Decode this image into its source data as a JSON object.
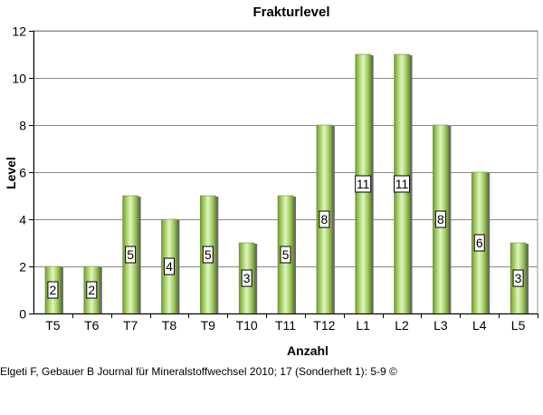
{
  "chart_data": {
    "type": "bar",
    "title": "Frakturlevel",
    "xlabel": "Anzahl",
    "ylabel": "Level",
    "categories": [
      "T5",
      "T6",
      "T7",
      "T8",
      "T9",
      "T10",
      "T11",
      "T12",
      "L1",
      "L2",
      "L3",
      "L4",
      "L5"
    ],
    "values": [
      2,
      2,
      5,
      4,
      5,
      3,
      5,
      8,
      11,
      11,
      8,
      6,
      3
    ],
    "ylim": [
      0,
      12
    ],
    "yticks": [
      0,
      2,
      4,
      6,
      8,
      10,
      12
    ],
    "grid": true,
    "legend": "none",
    "bar_color": "#9ccc5c"
  },
  "credit": "Elgeti F, Gebauer B Journal für Mineralstoffwechsel 2010; 17 (Sonderheft 1): 5-9 ©"
}
